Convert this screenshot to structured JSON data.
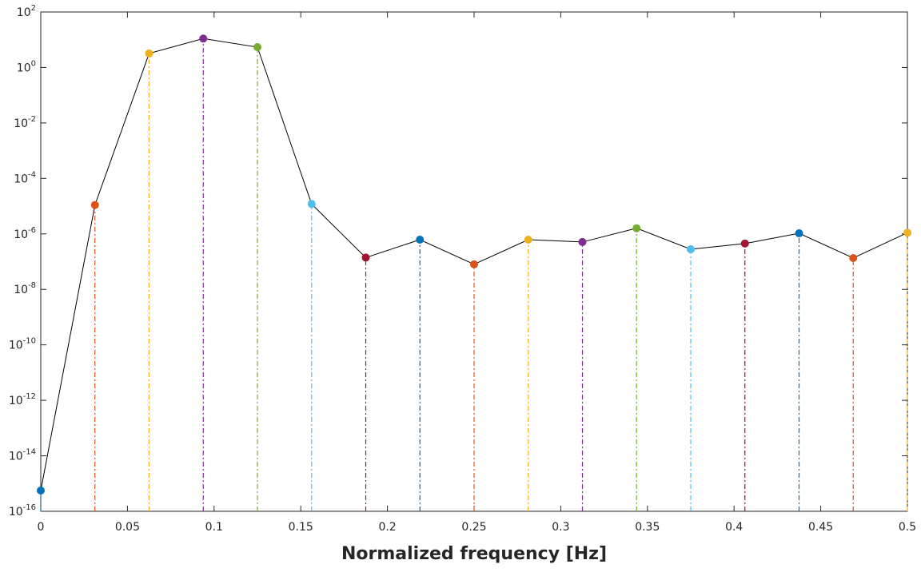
{
  "chart_data": {
    "type": "stem",
    "x_label": "Normalized frequency [Hz]",
    "x": [
      0,
      0.03125,
      0.0625,
      0.09375,
      0.125,
      0.15625,
      0.1875,
      0.21875,
      0.25,
      0.28125,
      0.3125,
      0.34375,
      0.375,
      0.40625,
      0.4375,
      0.46875,
      0.5
    ],
    "values": [
      5.6e-16,
      1.1e-05,
      3.2,
      11,
      5.4,
      1.2e-05,
      1.4e-07,
      6.2e-07,
      8e-08,
      6.2e-07,
      5.1e-07,
      1.6e-06,
      2.8e-07,
      4.5e-07,
      1.05e-06,
      1.35e-07,
      1.1e-06
    ],
    "colors": [
      "#0072BD",
      "#D95319",
      "#EDB120",
      "#7E2F8E",
      "#77AC30",
      "#4DBEEE",
      "#A2142F",
      "#0072BD",
      "#D95319",
      "#EDB120",
      "#7E2F8E",
      "#77AC30",
      "#4DBEEE",
      "#A2142F",
      "#0072BD",
      "#D95319",
      "#EDB120"
    ],
    "line_color": "#000000",
    "y_scale": "log",
    "xlim": [
      0,
      0.5
    ],
    "ylim": [
      1e-16,
      100
    ],
    "xticks": [
      0,
      0.05,
      0.1,
      0.15,
      0.2,
      0.25,
      0.3,
      0.35,
      0.4,
      0.45,
      0.5
    ],
    "yticks": [
      {
        "value": 1e-16,
        "label": "10^-16"
      },
      {
        "value": 1e-14,
        "label": "10^-14"
      },
      {
        "value": 1e-12,
        "label": "10^-12"
      },
      {
        "value": 1e-10,
        "label": "10^-10"
      },
      {
        "value": 1e-08,
        "label": "10^-8"
      },
      {
        "value": 1e-06,
        "label": "10^-6"
      },
      {
        "value": 0.0001,
        "label": "10^-4"
      },
      {
        "value": 0.01,
        "label": "10^-2"
      },
      {
        "value": 1,
        "label": "10^0"
      },
      {
        "value": 100,
        "label": "10^2"
      }
    ],
    "grid": false
  }
}
